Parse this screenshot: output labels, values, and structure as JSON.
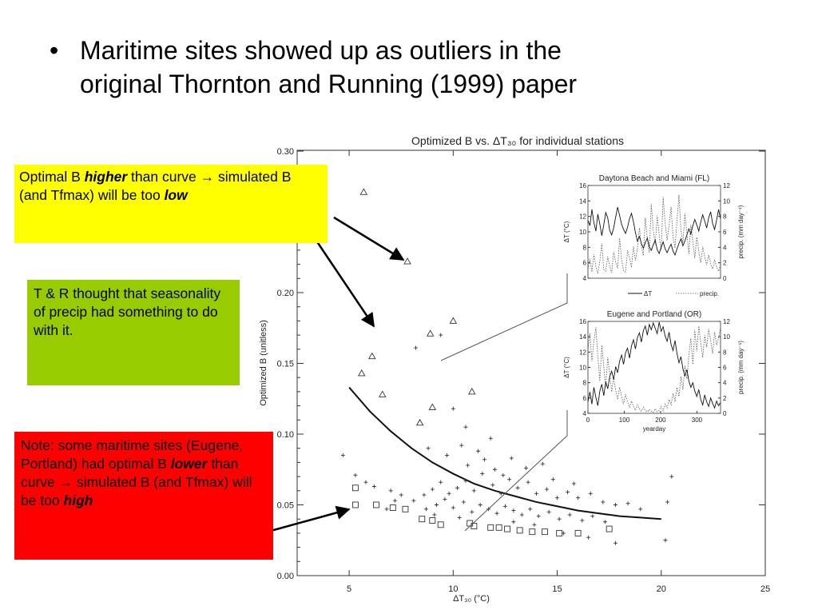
{
  "bullet": {
    "symbol": "•",
    "line1": "Maritime sites showed up as outliers in the",
    "line2": "original Thornton and Running (1999) paper"
  },
  "callouts": {
    "yellow": {
      "color": "#ffff00",
      "pre": "Optimal B ",
      "em": "higher",
      "mid": " than curve → simulated B (and Tfmax) will be too ",
      "em2": "low"
    },
    "green": {
      "color": "#99cc00",
      "text": "T & R thought that seasonality of precip had something to do with it."
    },
    "red": {
      "color": "#ff0000",
      "pre": "Note: some maritime sites (Eugene, Portland) had optimal B ",
      "em": "lower",
      "mid": " than curve → simulated B (and Tfmax) will be too ",
      "em2": "high"
    }
  },
  "chart_data": [
    {
      "type": "scatter",
      "title": "Optimized B vs. ΔT₃₀ for individual stations",
      "xlabel": "ΔT₃₀ (°C)",
      "ylabel": "Optimized B (unitless)",
      "xlim": [
        2.5,
        25
      ],
      "ylim": [
        0,
        0.3
      ],
      "xticks": [
        "5",
        "10",
        "15",
        "20",
        "25"
      ],
      "yticks": [
        "0.00",
        "0.05",
        "0.10",
        "0.15",
        "0.20",
        "0.30"
      ],
      "curve": [
        [
          5.0,
          0.133
        ],
        [
          6,
          0.116
        ],
        [
          7,
          0.102
        ],
        [
          8,
          0.09
        ],
        [
          9,
          0.08
        ],
        [
          10,
          0.072
        ],
        [
          11,
          0.065
        ],
        [
          12,
          0.06
        ],
        [
          13,
          0.056
        ],
        [
          14,
          0.052
        ],
        [
          15,
          0.049
        ],
        [
          16,
          0.046
        ],
        [
          17,
          0.044
        ],
        [
          18,
          0.042
        ],
        [
          19,
          0.041
        ],
        [
          20,
          0.04
        ]
      ],
      "series": [
        {
          "marker": "triangle",
          "points": [
            [
              5.7,
              0.271
            ],
            [
              7.8,
              0.222
            ],
            [
              10.0,
              0.18
            ],
            [
              8.9,
              0.171
            ],
            [
              6.1,
              0.155
            ],
            [
              5.6,
              0.143
            ],
            [
              6.6,
              0.128
            ],
            [
              9.0,
              0.119
            ],
            [
              10.9,
              0.13
            ],
            [
              8.4,
              0.108
            ]
          ]
        },
        {
          "marker": "square",
          "points": [
            [
              5.3,
              0.062
            ],
            [
              5.3,
              0.05
            ],
            [
              6.3,
              0.05
            ],
            [
              7.1,
              0.048
            ],
            [
              7.7,
              0.047
            ],
            [
              8.5,
              0.04
            ],
            [
              9.0,
              0.039
            ],
            [
              9.4,
              0.036
            ],
            [
              10.8,
              0.037
            ],
            [
              11.8,
              0.034
            ],
            [
              12.6,
              0.033
            ],
            [
              13.2,
              0.032
            ],
            [
              13.8,
              0.031
            ],
            [
              14.4,
              0.031
            ],
            [
              15.1,
              0.03
            ],
            [
              16.0,
              0.03
            ],
            [
              17.5,
              0.033
            ],
            [
              11.0,
              0.035
            ],
            [
              12.2,
              0.034
            ]
          ]
        },
        {
          "marker": "plus",
          "points": [
            [
              4.7,
              0.085
            ],
            [
              5.3,
              0.071
            ],
            [
              5.8,
              0.066
            ],
            [
              6.2,
              0.063
            ],
            [
              7.0,
              0.06
            ],
            [
              8.2,
              0.161
            ],
            [
              9.4,
              0.17
            ],
            [
              10.0,
              0.118
            ],
            [
              10.6,
              0.105
            ],
            [
              8.8,
              0.09
            ],
            [
              9.7,
              0.085
            ],
            [
              10.4,
              0.092
            ],
            [
              11.2,
              0.088
            ],
            [
              11.8,
              0.097
            ],
            [
              12.8,
              0.083
            ],
            [
              13.5,
              0.076
            ],
            [
              14.3,
              0.079
            ],
            [
              7.5,
              0.057
            ],
            [
              8.1,
              0.053
            ],
            [
              8.6,
              0.057
            ],
            [
              9.0,
              0.061
            ],
            [
              9.4,
              0.066
            ],
            [
              9.8,
              0.058
            ],
            [
              10.2,
              0.062
            ],
            [
              10.6,
              0.067
            ],
            [
              11.0,
              0.06
            ],
            [
              11.4,
              0.072
            ],
            [
              11.9,
              0.064
            ],
            [
              12.3,
              0.058
            ],
            [
              12.7,
              0.068
            ],
            [
              13.1,
              0.062
            ],
            [
              13.6,
              0.066
            ],
            [
              14.0,
              0.058
            ],
            [
              14.5,
              0.061
            ],
            [
              15.0,
              0.055
            ],
            [
              15.5,
              0.059
            ],
            [
              16.0,
              0.055
            ],
            [
              16.6,
              0.058
            ],
            [
              17.2,
              0.052
            ],
            [
              17.8,
              0.05
            ],
            [
              18.4,
              0.051
            ],
            [
              19.0,
              0.047
            ],
            [
              20.3,
              0.052
            ],
            [
              20.2,
              0.025
            ],
            [
              17.8,
              0.023
            ],
            [
              20.5,
              0.07
            ],
            [
              8.7,
              0.047
            ],
            [
              9.2,
              0.05
            ],
            [
              9.6,
              0.054
            ],
            [
              10.0,
              0.048
            ],
            [
              10.5,
              0.052
            ],
            [
              10.9,
              0.045
            ],
            [
              11.3,
              0.05
            ],
            [
              11.7,
              0.047
            ],
            [
              12.1,
              0.044
            ],
            [
              12.5,
              0.049
            ],
            [
              12.9,
              0.046
            ],
            [
              13.3,
              0.043
            ],
            [
              13.7,
              0.047
            ],
            [
              14.1,
              0.042
            ],
            [
              14.6,
              0.045
            ],
            [
              15.1,
              0.04
            ],
            [
              15.6,
              0.043
            ],
            [
              16.2,
              0.039
            ],
            [
              16.7,
              0.042
            ],
            [
              17.3,
              0.038
            ],
            [
              7.2,
              0.053
            ],
            [
              6.8,
              0.047
            ],
            [
              10.7,
              0.078
            ],
            [
              11.5,
              0.082
            ],
            [
              12.0,
              0.075
            ],
            [
              12.4,
              0.071
            ],
            [
              15.8,
              0.065
            ],
            [
              14.8,
              0.068
            ],
            [
              16.5,
              0.027
            ],
            [
              15.3,
              0.03
            ],
            [
              13.9,
              0.036
            ],
            [
              12.9,
              0.038
            ],
            [
              9.1,
              0.043
            ],
            [
              10.3,
              0.041
            ]
          ]
        }
      ]
    },
    {
      "type": "line",
      "title": "Daytona Beach and Miami (FL)",
      "ylabel": "ΔT (°C)",
      "y2label": "precip. (mm day⁻¹)",
      "ylim": [
        4,
        16
      ],
      "y2lim": [
        0,
        12
      ],
      "xlim": [
        0,
        365
      ],
      "yticks": [
        "4",
        "6",
        "8",
        "10",
        "12",
        "14",
        "16"
      ],
      "y2ticks": [
        "0",
        "2",
        "4",
        "6",
        "8",
        "10",
        "12"
      ],
      "legend": [
        "ΔT",
        "precip."
      ],
      "series": [
        {
          "name": "ΔT",
          "style": "solid",
          "values": [
            11.5,
            10.8,
            12.9,
            11.2,
            10.1,
            12.3,
            11.0,
            9.5,
            10.9,
            12.5,
            11.8,
            10.2,
            9.6,
            10.5,
            11.9,
            13.2,
            12.1,
            11.0,
            10.3,
            9.8,
            10.6,
            11.7,
            12.4,
            11.3,
            9.9,
            8.8,
            9.4,
            8.5,
            7.9,
            8.6,
            9.2,
            8.1,
            7.6,
            8.3,
            8.9,
            7.7,
            7.2,
            8.0,
            8.7,
            7.8,
            7.3,
            7.9,
            8.4,
            7.5,
            7.0,
            7.8,
            8.5,
            9.1,
            8.2,
            8.8,
            9.6,
            10.4,
            9.7,
            10.8,
            11.6,
            10.9,
            10.1,
            11.3,
            12.2,
            11.4,
            10.5,
            11.8,
            12.6,
            11.1,
            10.3,
            11.5,
            12.9,
            11.7
          ]
        },
        {
          "name": "precip.",
          "style": "dashed",
          "values": [
            1.2,
            2.5,
            0.8,
            3.1,
            1.5,
            0.6,
            2.2,
            4.5,
            1.1,
            0.9,
            2.8,
            1.6,
            0.7,
            3.4,
            2.1,
            1.3,
            5.2,
            2.4,
            1.0,
            0.8,
            3.6,
            2.7,
            1.4,
            4.1,
            2.3,
            3.8,
            6.5,
            4.2,
            2.9,
            7.8,
            5.1,
            3.3,
            9.6,
            6.2,
            4.4,
            8.1,
            5.6,
            3.7,
            10.5,
            7.2,
            4.9,
            6.8,
            9.2,
            5.4,
            3.9,
            7.5,
            10.8,
            6.1,
            4.6,
            8.4,
            5.8,
            3.2,
            6.9,
            4.7,
            2.6,
            5.3,
            3.5,
            2.0,
            4.1,
            2.8,
            1.7,
            3.0,
            1.9,
            1.2,
            2.4,
            1.5,
            0.9,
            1.8
          ]
        }
      ]
    },
    {
      "type": "line",
      "title": "Eugene and Portland (OR)",
      "ylabel": "ΔT (°C)",
      "y2label": "precip. (mm day⁻¹)",
      "xlabel": "yearday",
      "ylim": [
        4,
        16
      ],
      "y2lim": [
        0,
        12
      ],
      "xlim": [
        0,
        365
      ],
      "xticks": [
        "0",
        "100",
        "200",
        "300"
      ],
      "yticks": [
        "4",
        "6",
        "8",
        "10",
        "12",
        "14",
        "16"
      ],
      "y2ticks": [
        "0",
        "2",
        "4",
        "6",
        "8",
        "10",
        "12"
      ],
      "series": [
        {
          "name": "ΔT",
          "style": "solid",
          "values": [
            5.5,
            6.8,
            5.2,
            7.4,
            6.1,
            5.0,
            6.9,
            7.8,
            6.3,
            8.1,
            7.2,
            8.8,
            9.5,
            8.4,
            10.1,
            9.3,
            10.8,
            11.6,
            10.4,
            11.9,
            12.5,
            11.2,
            12.8,
            13.6,
            12.4,
            13.9,
            14.5,
            13.3,
            14.8,
            15.4,
            14.2,
            15.6,
            14.9,
            15.8,
            15.1,
            14.4,
            15.9,
            14.7,
            15.3,
            14.1,
            13.4,
            14.6,
            13.0,
            12.2,
            13.5,
            11.8,
            10.6,
            11.4,
            9.8,
            8.9,
            9.7,
            8.2,
            7.4,
            8.0,
            6.9,
            6.2,
            7.1,
            5.8,
            5.1,
            6.4,
            5.5,
            4.9,
            6.0,
            5.3,
            4.7,
            5.6,
            5.0,
            5.4
          ]
        },
        {
          "name": "precip.",
          "style": "dashed",
          "values": [
            8.2,
            10.5,
            6.8,
            9.4,
            11.2,
            7.5,
            4.2,
            8.9,
            6.1,
            3.5,
            7.3,
            5.2,
            2.8,
            4.6,
            3.1,
            1.8,
            3.4,
            2.2,
            1.2,
            2.5,
            1.5,
            0.8,
            1.6,
            0.9,
            0.4,
            1.1,
            0.6,
            0.3,
            0.8,
            0.4,
            0.2,
            0.5,
            0.3,
            0.1,
            0.6,
            0.2,
            0.4,
            0.9,
            0.3,
            1.2,
            0.7,
            1.8,
            1.1,
            2.6,
            1.5,
            3.4,
            2.2,
            4.8,
            3.1,
            6.2,
            4.5,
            7.6,
            9.8,
            6.4,
            10.9,
            8.1,
            11.4,
            9.2,
            7.3,
            10.2,
            8.6,
            11.0,
            9.5,
            7.8,
            10.6,
            8.9,
            9.8,
            11.2
          ]
        }
      ]
    }
  ]
}
